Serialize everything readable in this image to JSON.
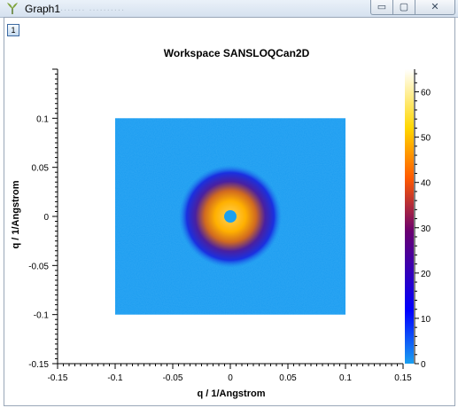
{
  "window": {
    "title": "Graph1",
    "title_ghost": "....... ..........",
    "buttons": {
      "minimize": "▭",
      "maximize": "▢",
      "close": "✕"
    }
  },
  "layer_button": {
    "label": "1"
  },
  "chart_data": {
    "type": "heatmap",
    "title": "Workspace SANSLOQCan2D",
    "xlabel": "q / 1/Angstrom",
    "ylabel": "q / 1/Angstrom",
    "xlim": [
      -0.15,
      0.15
    ],
    "ylim": [
      -0.15,
      0.15
    ],
    "x_ticks": [
      -0.15,
      -0.1,
      -0.05,
      0,
      0.05,
      0.1,
      0.15
    ],
    "x_tick_labels": [
      "-0.15",
      "-0.1",
      "-0.05",
      "0",
      "0.05",
      "0.1",
      "0.15"
    ],
    "y_ticks": [
      0.1,
      0.05,
      0,
      -0.05,
      -0.1,
      -0.15
    ],
    "y_tick_labels": [
      "0.1",
      "0.05",
      "0",
      "-0.05",
      "-0.1",
      "-0.15"
    ],
    "data_extent": {
      "x": [
        -0.1,
        0.1
      ],
      "y": [
        -0.1,
        0.1
      ]
    },
    "colorbar": {
      "range": [
        0,
        65
      ],
      "ticks": [
        0,
        10,
        20,
        30,
        40,
        50,
        60
      ],
      "tick_labels": [
        "0",
        "10",
        "20",
        "30",
        "40",
        "50",
        "60"
      ],
      "colors": [
        "#1a9cf0",
        "#0000ff",
        "#6a0070",
        "#ff6a00",
        "#ffd700",
        "#ffffff"
      ]
    },
    "grid": false,
    "legend": "colorbar-right"
  }
}
